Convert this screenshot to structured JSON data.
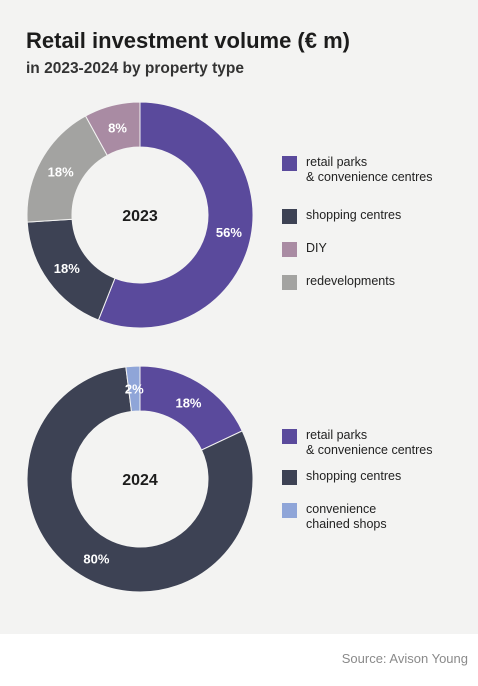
{
  "header": {
    "title": "Retail investment volume (€ m)",
    "subtitle": "in 2023-2024 by property type"
  },
  "chart_data": [
    {
      "type": "pie",
      "year_label": "2023",
      "slices": [
        {
          "name": "retail parks\n& convenience centres",
          "value": 56,
          "label": "56%",
          "color": "#5a4a9c"
        },
        {
          "name": "shopping centres",
          "value": 18,
          "label": "18%",
          "color": "#3d4254"
        },
        {
          "name": "redevelopments",
          "value": 18,
          "label": "18%",
          "color": "#a3a3a1"
        },
        {
          "name": "DIY",
          "value": 8,
          "label": "8%",
          "color": "#a98ba3"
        }
      ],
      "legend": [
        {
          "label": "retail parks\n& convenience centres",
          "color": "#5a4a9c"
        },
        {
          "label": "shopping centres",
          "color": "#3d4254"
        },
        {
          "label": "DIY",
          "color": "#a98ba3"
        },
        {
          "label": "redevelopments",
          "color": "#a3a3a1"
        }
      ],
      "legend_position": "right"
    },
    {
      "type": "pie",
      "year_label": "2024",
      "slices": [
        {
          "name": "retail parks\n& convenience centres",
          "value": 18,
          "label": "18%",
          "color": "#5a4a9c"
        },
        {
          "name": "shopping centres",
          "value": 80,
          "label": "80%",
          "color": "#3d4254"
        },
        {
          "name": "convenience\nchained shops",
          "value": 2,
          "label": "2%",
          "color": "#8fa5d8"
        }
      ],
      "legend": [
        {
          "label": "retail parks\n& convenience centres",
          "color": "#5a4a9c"
        },
        {
          "label": "shopping centres",
          "color": "#3d4254"
        },
        {
          "label": "convenience\nchained shops",
          "color": "#8fa5d8"
        }
      ],
      "legend_position": "right"
    }
  ],
  "footer": {
    "source": "Source: Avison Young"
  }
}
